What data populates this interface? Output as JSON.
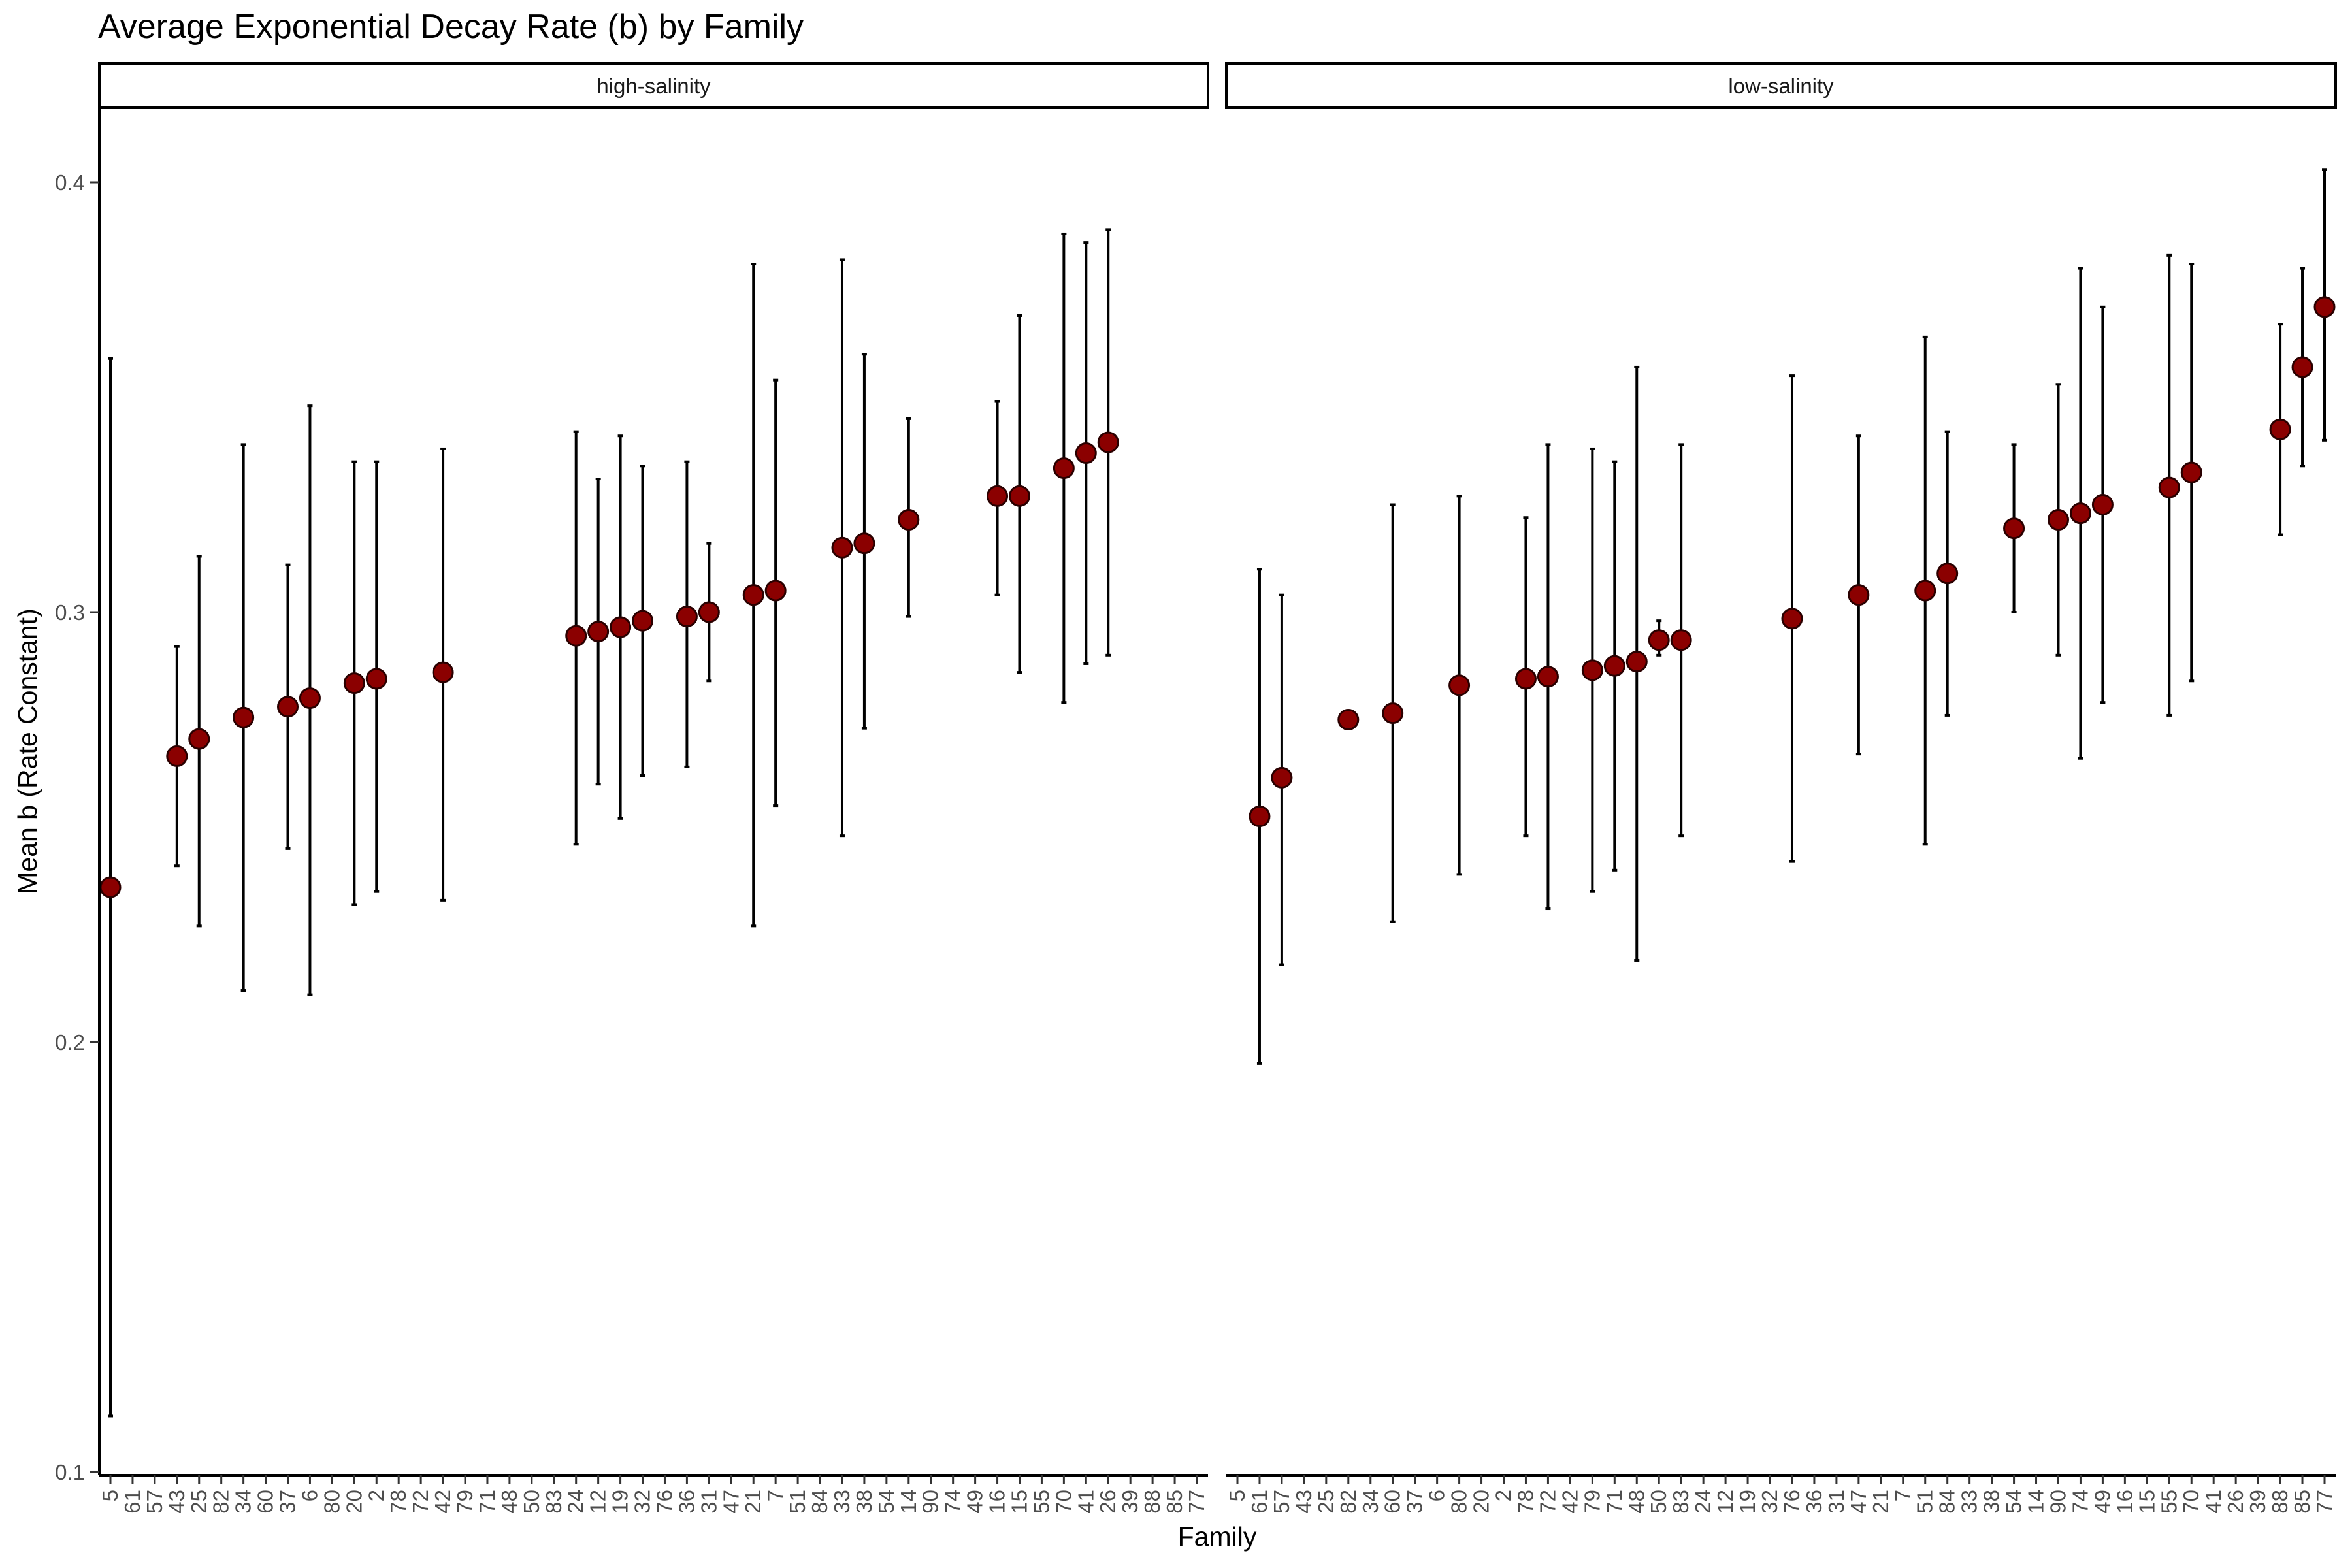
{
  "chart_data": {
    "type": "scatter",
    "title": "Average Exponential Decay Rate (b) by Family",
    "xlabel": "Family",
    "ylabel": "Mean b (Rate Constant)",
    "ylim": [
      0.1,
      0.4
    ],
    "yticks": [
      0.1,
      0.2,
      0.3,
      0.4
    ],
    "ytick_labels": [
      "0.1",
      "0.2",
      "0.3",
      "0.4"
    ],
    "grid": false,
    "legend": "none",
    "colors": {
      "point": "#8b0000",
      "errorbar": "#000000",
      "axis": "#000000"
    },
    "panels": [
      {
        "name": "high-salinity",
        "categories": [
          "5",
          "61",
          "57",
          "43",
          "25",
          "82",
          "34",
          "60",
          "37",
          "6",
          "80",
          "20",
          "2",
          "78",
          "72",
          "42",
          "79",
          "71",
          "48",
          "50",
          "83",
          "24",
          "12",
          "19",
          "32",
          "76",
          "36",
          "31",
          "47",
          "21",
          "7",
          "51",
          "84",
          "33",
          "38",
          "54",
          "14",
          "90",
          "74",
          "49",
          "16",
          "15",
          "55",
          "70",
          "41",
          "26",
          "39",
          "88",
          "85",
          "77"
        ],
        "points": [
          {
            "x": "5",
            "y": 0.236,
            "ymin": 0.113,
            "ymax": 0.359
          },
          {
            "x": "43",
            "y": 0.2665,
            "ymin": 0.241,
            "ymax": 0.292
          },
          {
            "x": "25",
            "y": 0.2705,
            "ymin": 0.227,
            "ymax": 0.313
          },
          {
            "x": "34",
            "y": 0.2755,
            "ymin": 0.212,
            "ymax": 0.339
          },
          {
            "x": "37",
            "y": 0.278,
            "ymin": 0.245,
            "ymax": 0.311
          },
          {
            "x": "6",
            "y": 0.28,
            "ymin": 0.211,
            "ymax": 0.348
          },
          {
            "x": "20",
            "y": 0.2835,
            "ymin": 0.232,
            "ymax": 0.335
          },
          {
            "x": "2",
            "y": 0.2845,
            "ymin": 0.235,
            "ymax": 0.335
          },
          {
            "x": "42",
            "y": 0.286,
            "ymin": 0.233,
            "ymax": 0.338
          },
          {
            "x": "24",
            "y": 0.2945,
            "ymin": 0.246,
            "ymax": 0.342
          },
          {
            "x": "12",
            "y": 0.2955,
            "ymin": 0.26,
            "ymax": 0.331
          },
          {
            "x": "19",
            "y": 0.2965,
            "ymin": 0.252,
            "ymax": 0.341
          },
          {
            "x": "32",
            "y": 0.298,
            "ymin": 0.262,
            "ymax": 0.334
          },
          {
            "x": "36",
            "y": 0.299,
            "ymin": 0.264,
            "ymax": 0.335
          },
          {
            "x": "31",
            "y": 0.3,
            "ymin": 0.284,
            "ymax": 0.316
          },
          {
            "x": "21",
            "y": 0.304,
            "ymin": 0.227,
            "ymax": 0.381
          },
          {
            "x": "7",
            "y": 0.305,
            "ymin": 0.255,
            "ymax": 0.354
          },
          {
            "x": "33",
            "y": 0.315,
            "ymin": 0.248,
            "ymax": 0.382
          },
          {
            "x": "38",
            "y": 0.316,
            "ymin": 0.273,
            "ymax": 0.36
          },
          {
            "x": "14",
            "y": 0.3215,
            "ymin": 0.299,
            "ymax": 0.345
          },
          {
            "x": "16",
            "y": 0.327,
            "ymin": 0.304,
            "ymax": 0.349
          },
          {
            "x": "15",
            "y": 0.327,
            "ymin": 0.286,
            "ymax": 0.369
          },
          {
            "x": "70",
            "y": 0.3335,
            "ymin": 0.279,
            "ymax": 0.388
          },
          {
            "x": "41",
            "y": 0.337,
            "ymin": 0.288,
            "ymax": 0.386
          },
          {
            "x": "26",
            "y": 0.3395,
            "ymin": 0.29,
            "ymax": 0.389
          }
        ]
      },
      {
        "name": "low-salinity",
        "categories": [
          "5",
          "61",
          "57",
          "43",
          "25",
          "82",
          "34",
          "60",
          "37",
          "6",
          "80",
          "20",
          "2",
          "78",
          "72",
          "42",
          "79",
          "71",
          "48",
          "50",
          "83",
          "24",
          "12",
          "19",
          "32",
          "76",
          "36",
          "31",
          "47",
          "21",
          "7",
          "51",
          "84",
          "33",
          "38",
          "54",
          "14",
          "90",
          "74",
          "49",
          "16",
          "15",
          "55",
          "70",
          "41",
          "26",
          "39",
          "88",
          "85",
          "77"
        ],
        "points": [
          {
            "x": "61",
            "y": 0.2525,
            "ymin": 0.195,
            "ymax": 0.31
          },
          {
            "x": "57",
            "y": 0.2615,
            "ymin": 0.218,
            "ymax": 0.304
          },
          {
            "x": "82",
            "y": 0.275,
            "ymin": 0.275,
            "ymax": 0.275
          },
          {
            "x": "60",
            "y": 0.2765,
            "ymin": 0.228,
            "ymax": 0.325
          },
          {
            "x": "80",
            "y": 0.283,
            "ymin": 0.239,
            "ymax": 0.327
          },
          {
            "x": "78",
            "y": 0.2845,
            "ymin": 0.248,
            "ymax": 0.322
          },
          {
            "x": "72",
            "y": 0.285,
            "ymin": 0.231,
            "ymax": 0.339
          },
          {
            "x": "79",
            "y": 0.2865,
            "ymin": 0.235,
            "ymax": 0.338
          },
          {
            "x": "71",
            "y": 0.2875,
            "ymin": 0.24,
            "ymax": 0.335
          },
          {
            "x": "48",
            "y": 0.2885,
            "ymin": 0.219,
            "ymax": 0.357
          },
          {
            "x": "50",
            "y": 0.2935,
            "ymin": 0.29,
            "ymax": 0.298
          },
          {
            "x": "83",
            "y": 0.2935,
            "ymin": 0.248,
            "ymax": 0.339
          },
          {
            "x": "76",
            "y": 0.2985,
            "ymin": 0.242,
            "ymax": 0.355
          },
          {
            "x": "47",
            "y": 0.304,
            "ymin": 0.267,
            "ymax": 0.341
          },
          {
            "x": "51",
            "y": 0.305,
            "ymin": 0.246,
            "ymax": 0.364
          },
          {
            "x": "84",
            "y": 0.309,
            "ymin": 0.276,
            "ymax": 0.342
          },
          {
            "x": "54",
            "y": 0.3195,
            "ymin": 0.3,
            "ymax": 0.339
          },
          {
            "x": "90",
            "y": 0.3215,
            "ymin": 0.29,
            "ymax": 0.353
          },
          {
            "x": "74",
            "y": 0.323,
            "ymin": 0.266,
            "ymax": 0.38
          },
          {
            "x": "49",
            "y": 0.325,
            "ymin": 0.279,
            "ymax": 0.371
          },
          {
            "x": "55",
            "y": 0.329,
            "ymin": 0.276,
            "ymax": 0.383
          },
          {
            "x": "70",
            "y": 0.3325,
            "ymin": 0.284,
            "ymax": 0.381
          },
          {
            "x": "88",
            "y": 0.3425,
            "ymin": 0.318,
            "ymax": 0.367
          },
          {
            "x": "85",
            "y": 0.357,
            "ymin": 0.334,
            "ymax": 0.38
          },
          {
            "x": "77",
            "y": 0.371,
            "ymin": 0.34,
            "ymax": 0.403
          }
        ]
      }
    ]
  }
}
